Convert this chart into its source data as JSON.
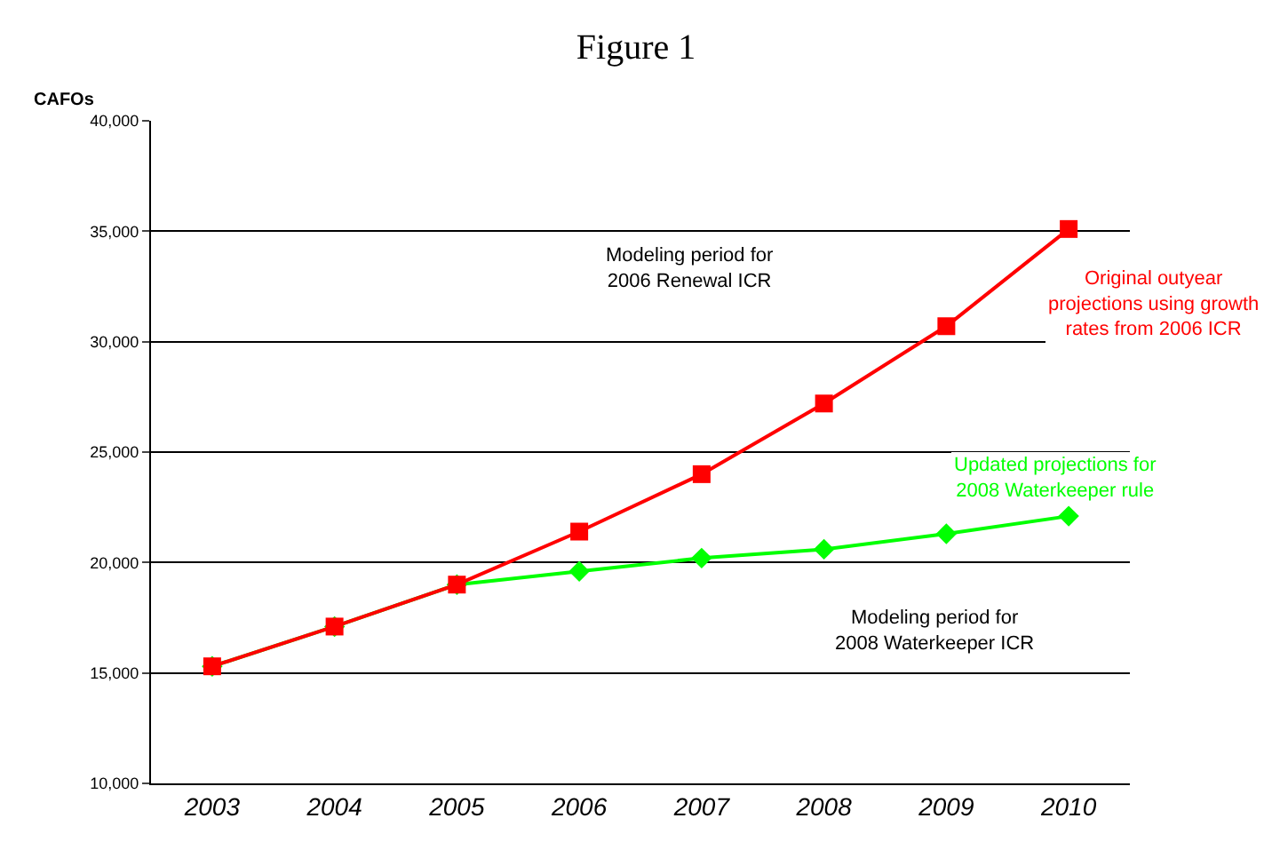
{
  "chart_data": {
    "type": "line",
    "title": "Figure 1",
    "ylabel": "CAFOs",
    "categories": [
      "2003",
      "2004",
      "2005",
      "2006",
      "2007",
      "2008",
      "2009",
      "2010"
    ],
    "series": [
      {
        "name": "Updated projections for 2008 Waterkeeper rule",
        "color": "#00ff00",
        "marker": "diamond",
        "values": [
          15300,
          17100,
          19000,
          19600,
          20200,
          20600,
          21300,
          22100
        ]
      },
      {
        "name": "Original outyear projections using growth rates from 2006 ICR",
        "color": "#ff0000",
        "marker": "square",
        "values": [
          15300,
          17100,
          19000,
          21400,
          24000,
          27200,
          30700,
          35100
        ]
      }
    ],
    "annotations": [
      {
        "text": "Modeling period for 2006 Renewal ICR"
      },
      {
        "text": "Modeling period for 2008 Waterkeeper ICR"
      }
    ],
    "ylim": [
      10000,
      40000
    ],
    "yticks": [
      {
        "value": 10000,
        "label": "10,000"
      },
      {
        "value": 15000,
        "label": "15,000"
      },
      {
        "value": 20000,
        "label": "20,000"
      },
      {
        "value": 25000,
        "label": "25,000"
      },
      {
        "value": 30000,
        "label": "30,000"
      },
      {
        "value": 35000,
        "label": "35,000"
      },
      {
        "value": 40000,
        "label": "40,000"
      }
    ],
    "grid": "y",
    "legend": false
  }
}
